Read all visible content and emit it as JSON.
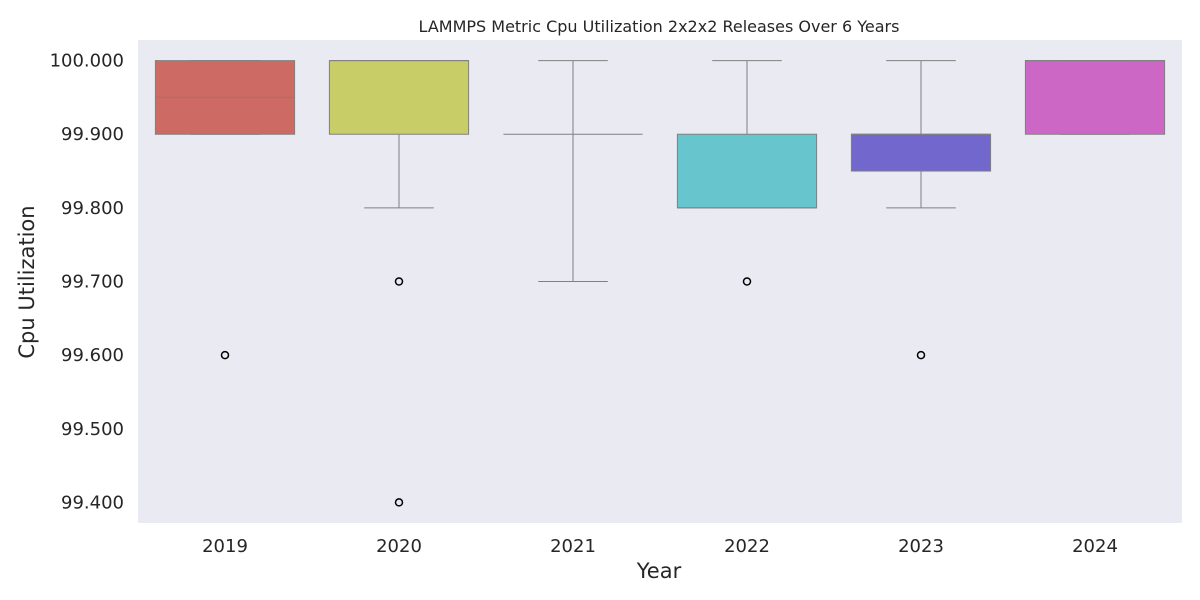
{
  "chart_data": {
    "type": "box",
    "title": "LAMMPS Metric Cpu Utilization 2x2x2 Releases Over 6 Years",
    "xlabel": "Year",
    "ylabel": "Cpu Utilization",
    "categories": [
      "2019",
      "2020",
      "2021",
      "2022",
      "2023",
      "2024"
    ],
    "ylim": [
      99.372,
      100.028
    ],
    "yticks": [
      99.4,
      99.5,
      99.6,
      99.7,
      99.8,
      99.9,
      100.0
    ],
    "ytick_labels": [
      "99.400",
      "99.500",
      "99.600",
      "99.700",
      "99.800",
      "99.900",
      "100.000"
    ],
    "grid": false,
    "background": "#EAEAF2",
    "boxes": [
      {
        "category": "2019",
        "whisker_low": 99.9,
        "q1": 99.9,
        "median": 99.95,
        "q3": 100.0,
        "whisker_high": 100.0,
        "outliers": [
          99.6
        ],
        "color": "#CD6A63"
      },
      {
        "category": "2020",
        "whisker_low": 99.8,
        "q1": 99.9,
        "median": 100.0,
        "q3": 100.0,
        "whisker_high": 100.0,
        "outliers": [
          99.7,
          99.4
        ],
        "color": "#C8CD67"
      },
      {
        "category": "2021",
        "whisker_low": 99.7,
        "q1": 99.9,
        "median": 99.9,
        "q3": 99.9,
        "whisker_high": 100.0,
        "outliers": [],
        "color": "#67CD6A"
      },
      {
        "category": "2022",
        "whisker_low": 99.8,
        "q1": 99.8,
        "median": 99.8,
        "q3": 99.9,
        "whisker_high": 100.0,
        "outliers": [
          99.7
        ],
        "color": "#67C5CD"
      },
      {
        "category": "2023",
        "whisker_low": 99.8,
        "q1": 99.85,
        "median": 99.9,
        "q3": 99.9,
        "whisker_high": 100.0,
        "outliers": [
          99.6
        ],
        "color": "#7167CD"
      },
      {
        "category": "2024",
        "whisker_low": 99.9,
        "q1": 99.9,
        "median": 100.0,
        "q3": 100.0,
        "whisker_high": 100.0,
        "outliers": [],
        "color": "#CD67C6"
      }
    ]
  }
}
